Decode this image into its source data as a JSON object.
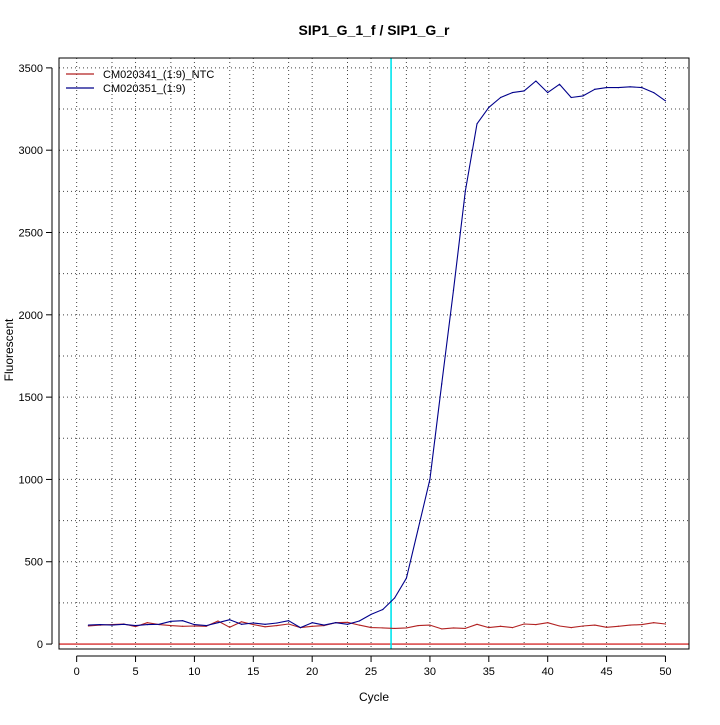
{
  "chart_data": {
    "type": "line",
    "title": "SIP1_G_1_f / SIP1_G_r",
    "xlabel": "Cycle",
    "ylabel": "Fluorescent",
    "xlim": [
      -1.5,
      52
    ],
    "ylim": [
      -30,
      3560
    ],
    "xticks": [
      0,
      5,
      10,
      15,
      20,
      25,
      30,
      35,
      40,
      45,
      50
    ],
    "yticks": [
      0,
      500,
      1000,
      1500,
      2000,
      2500,
      3000,
      3500
    ],
    "x_minor_gridlines": [
      3,
      8,
      13,
      18,
      23,
      28,
      33,
      38,
      43,
      48
    ],
    "y_minor_gridlines": [
      250,
      750,
      1250,
      1750,
      2250,
      2750,
      3250
    ],
    "grid": true,
    "grid_style": "dotted",
    "legend_position": "top-left",
    "threshold": {
      "orientation": "vertical",
      "x": 26.7,
      "color": "#00e5ee"
    },
    "baseline": {
      "orientation": "horizontal",
      "y": 0,
      "color": "#cc0000"
    },
    "series": [
      {
        "name": "CM020341_(1:9)_NTC",
        "color": "#b22222",
        "x": [
          1,
          2,
          3,
          4,
          5,
          6,
          7,
          8,
          9,
          10,
          11,
          12,
          13,
          14,
          15,
          16,
          17,
          18,
          19,
          20,
          21,
          22,
          23,
          24,
          25,
          26,
          27,
          28,
          29,
          30,
          31,
          32,
          33,
          34,
          35,
          36,
          37,
          38,
          39,
          40,
          41,
          42,
          43,
          44,
          45,
          46,
          47,
          48,
          49,
          50
        ],
        "values": [
          110,
          115,
          118,
          122,
          106,
          130,
          118,
          112,
          108,
          110,
          108,
          140,
          102,
          135,
          118,
          105,
          112,
          122,
          100,
          108,
          112,
          130,
          132,
          115,
          100,
          98,
          95,
          98,
          112,
          115,
          92,
          98,
          95,
          120,
          100,
          108,
          100,
          122,
          118,
          130,
          110,
          100,
          110,
          115,
          102,
          108,
          115,
          118,
          130,
          122
        ]
      },
      {
        "name": "CM020351_(1:9)",
        "color": "#00008b",
        "x": [
          1,
          2,
          3,
          4,
          5,
          6,
          7,
          8,
          9,
          10,
          11,
          12,
          13,
          14,
          15,
          16,
          17,
          18,
          19,
          20,
          21,
          22,
          23,
          24,
          25,
          26,
          27,
          28,
          29,
          30,
          31,
          32,
          33,
          34,
          35,
          36,
          37,
          38,
          39,
          40,
          41,
          42,
          43,
          44,
          45,
          46,
          47,
          48,
          49,
          50
        ],
        "values": [
          115,
          118,
          115,
          120,
          112,
          118,
          120,
          138,
          142,
          118,
          112,
          130,
          148,
          120,
          128,
          120,
          128,
          142,
          100,
          130,
          115,
          130,
          120,
          140,
          180,
          210,
          280,
          400,
          700,
          1000,
          1580,
          2150,
          2750,
          3160,
          3260,
          3320,
          3350,
          3360,
          3420,
          3350,
          3400,
          3320,
          3330,
          3370,
          3380,
          3380,
          3385,
          3380,
          3350,
          3300
        ]
      }
    ]
  }
}
